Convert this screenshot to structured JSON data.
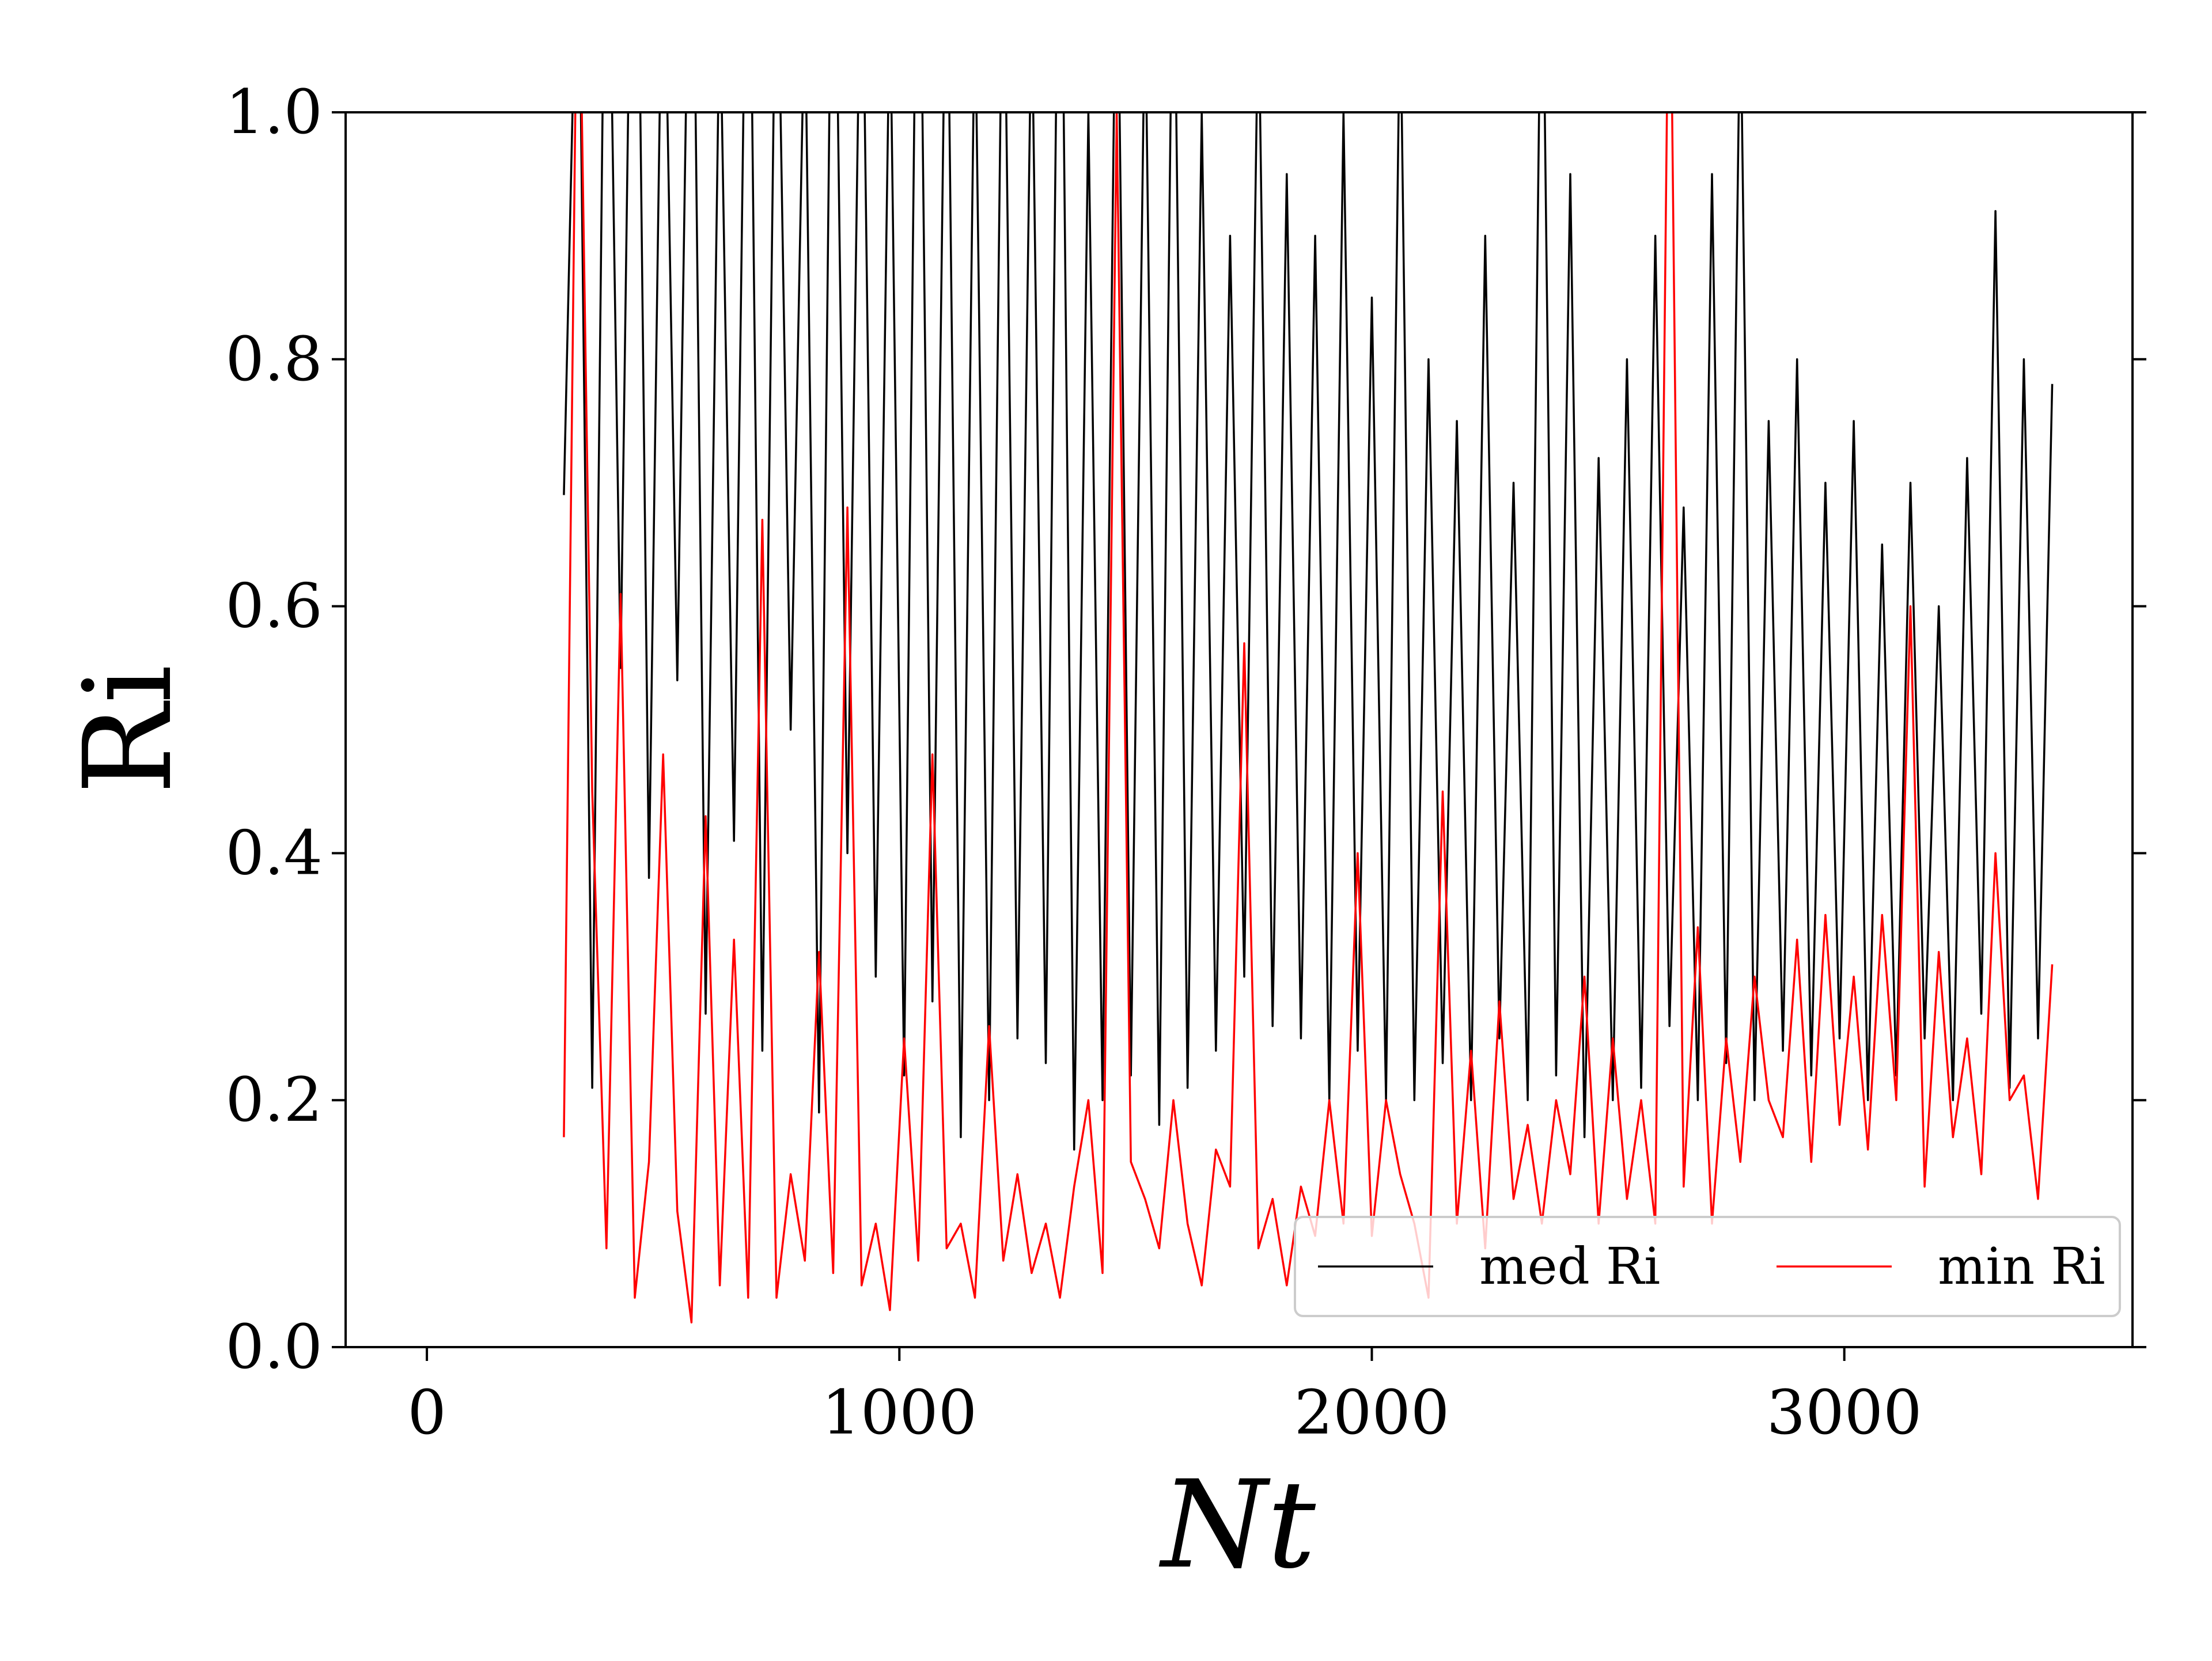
{
  "chart_data": {
    "type": "line",
    "xlabel": "Nt",
    "ylabel": "Ri",
    "x": [
      290,
      320,
      350,
      380,
      410,
      440,
      470,
      500,
      530,
      560,
      590,
      620,
      650,
      680,
      710,
      740,
      770,
      800,
      830,
      860,
      890,
      920,
      950,
      980,
      1010,
      1040,
      1070,
      1100,
      1130,
      1160,
      1190,
      1220,
      1250,
      1280,
      1310,
      1340,
      1370,
      1400,
      1430,
      1460,
      1490,
      1520,
      1550,
      1580,
      1610,
      1640,
      1670,
      1700,
      1730,
      1760,
      1790,
      1820,
      1850,
      1880,
      1910,
      1940,
      1970,
      2000,
      2030,
      2060,
      2090,
      2120,
      2150,
      2180,
      2210,
      2240,
      2270,
      2300,
      2330,
      2360,
      2390,
      2420,
      2450,
      2480,
      2510,
      2540,
      2570,
      2600,
      2630,
      2660,
      2690,
      2720,
      2750,
      2780,
      2810,
      2840,
      2870,
      2900,
      2930,
      2960,
      2990,
      3020,
      3050,
      3080,
      3110,
      3140,
      3170,
      3200,
      3230,
      3260,
      3290,
      3320,
      3350,
      3380,
      3410,
      3440
    ],
    "series": [
      {
        "name": "med Ri",
        "color": "#000000",
        "values": [
          0.69,
          1.2,
          0.21,
          1.3,
          0.55,
          1.4,
          0.38,
          1.2,
          0.54,
          1.3,
          0.27,
          1.1,
          0.41,
          1.3,
          0.24,
          1.2,
          0.5,
          1.1,
          0.19,
          1.3,
          0.4,
          1.2,
          0.3,
          1.1,
          0.22,
          1.3,
          0.28,
          1.2,
          0.17,
          1.1,
          0.2,
          1.2,
          0.25,
          1.1,
          0.23,
          1.3,
          0.16,
          1.0,
          0.2,
          1.2,
          0.22,
          1.1,
          0.18,
          1.2,
          0.21,
          1.0,
          0.24,
          0.9,
          0.3,
          1.1,
          0.26,
          0.95,
          0.25,
          0.9,
          0.2,
          1.0,
          0.24,
          0.85,
          0.2,
          1.1,
          0.2,
          0.8,
          0.23,
          0.75,
          0.2,
          0.9,
          0.25,
          0.7,
          0.2,
          1.2,
          0.22,
          0.95,
          0.17,
          0.72,
          0.2,
          0.8,
          0.21,
          0.9,
          0.26,
          0.68,
          0.2,
          0.95,
          0.23,
          1.1,
          0.2,
          0.75,
          0.24,
          0.8,
          0.22,
          0.7,
          0.25,
          0.75,
          0.2,
          0.65,
          0.22,
          0.7,
          0.25,
          0.6,
          0.2,
          0.72,
          0.27,
          0.92,
          0.21,
          0.8,
          0.25,
          0.78
        ]
      },
      {
        "name": "min Ri",
        "color": "#ff0000",
        "values": [
          0.17,
          1.2,
          0.45,
          0.08,
          0.61,
          0.04,
          0.15,
          0.48,
          0.11,
          0.02,
          0.43,
          0.05,
          0.33,
          0.04,
          0.67,
          0.04,
          0.14,
          0.07,
          0.32,
          0.06,
          0.68,
          0.05,
          0.1,
          0.03,
          0.25,
          0.07,
          0.48,
          0.08,
          0.1,
          0.04,
          0.26,
          0.07,
          0.14,
          0.06,
          0.1,
          0.04,
          0.13,
          0.2,
          0.06,
          1.0,
          0.15,
          0.12,
          0.08,
          0.2,
          0.1,
          0.05,
          0.16,
          0.13,
          0.57,
          0.08,
          0.12,
          0.05,
          0.13,
          0.09,
          0.2,
          0.1,
          0.4,
          0.09,
          0.2,
          0.14,
          0.1,
          0.04,
          0.45,
          0.1,
          0.24,
          0.08,
          0.28,
          0.12,
          0.18,
          0.1,
          0.2,
          0.14,
          0.3,
          0.1,
          0.25,
          0.12,
          0.2,
          0.1,
          1.2,
          0.13,
          0.34,
          0.1,
          0.25,
          0.15,
          0.3,
          0.2,
          0.17,
          0.33,
          0.15,
          0.35,
          0.18,
          0.3,
          0.16,
          0.35,
          0.2,
          0.6,
          0.13,
          0.32,
          0.17,
          0.25,
          0.14,
          0.4,
          0.2,
          0.22,
          0.12,
          0.31
        ]
      }
    ],
    "xlim": [
      -172,
      3610
    ],
    "ylim": [
      0,
      1
    ],
    "xticks": [
      0,
      1000,
      2000,
      3000
    ],
    "yticks": [
      {
        "value": 0,
        "label": "0.0"
      },
      0.2,
      0.4,
      0.6,
      0.8,
      {
        "value": 1,
        "label": "1.0"
      }
    ],
    "legend": "lower right",
    "grid": false
  }
}
